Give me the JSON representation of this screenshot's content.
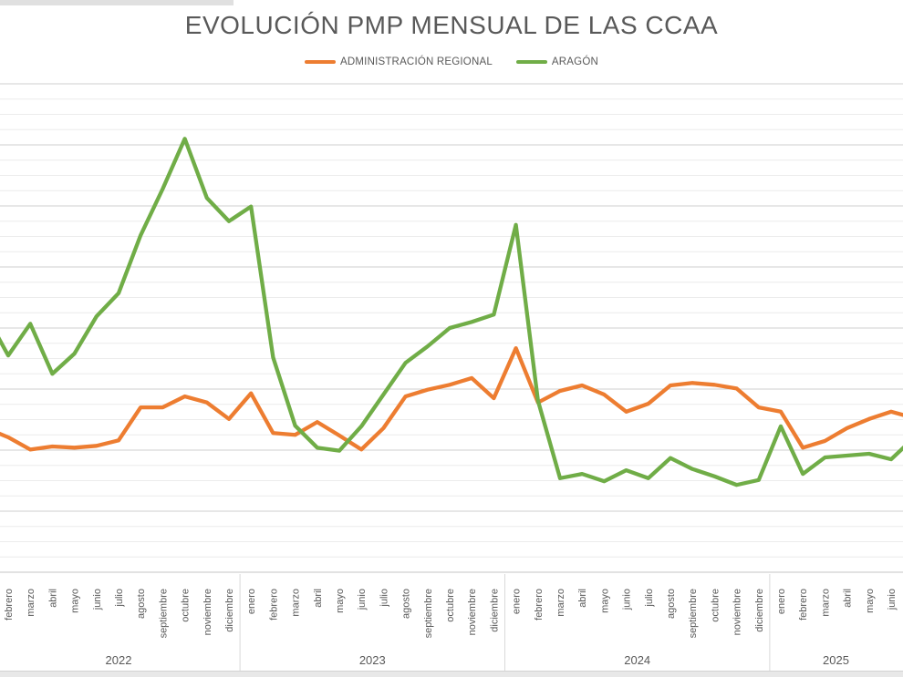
{
  "title": "EVOLUCIÓN PMP MENSUAL DE LAS CCAA",
  "legend": {
    "items": [
      {
        "label": "ADMINISTRACIÓN REGIONAL",
        "color": "#ED7D31"
      },
      {
        "label": "ARAGÓN",
        "color": "#70AD47"
      }
    ]
  },
  "chart_data": {
    "type": "line",
    "title": "EVOLUCIÓN PMP MENSUAL DE LAS CCAA",
    "legend_position": "top",
    "grid": true,
    "note": "Y-axis tick labels are cropped out of the visible image; values are estimated (PMP days). Leftmost (enero 2022) and rightmost (julio 2025) points are clipped at the image edges.",
    "x_groups": [
      {
        "year": "2022",
        "months": [
          "febrero",
          "marzo",
          "abril",
          "mayo",
          "junio",
          "julio",
          "agosto",
          "septiembre",
          "octubre",
          "noviembre",
          "diciembre"
        ]
      },
      {
        "year": "2023",
        "months": [
          "enero",
          "febrero",
          "marzo",
          "abril",
          "mayo",
          "junio",
          "julio",
          "agosto",
          "septiembre",
          "octubre",
          "noviembre",
          "diciembre"
        ]
      },
      {
        "year": "2024",
        "months": [
          "enero",
          "febrero",
          "marzo",
          "abril",
          "mayo",
          "junio",
          "julio",
          "agosto",
          "septiembre",
          "octubre",
          "noviembre",
          "diciembre"
        ]
      },
      {
        "year": "2025",
        "months": [
          "enero",
          "febrero",
          "marzo",
          "abril",
          "mayo",
          "junio"
        ]
      }
    ],
    "y_axis": {
      "labels_visible": false,
      "est_min": 0,
      "est_max": 80,
      "major_grid_step": 10,
      "minor_grid_step": 2.5
    },
    "series": [
      {
        "name": "ADMINISTRACIÓN REGIONAL",
        "color": "#ED7D31",
        "edge_lead_in": 23.6,
        "edge_lead_out": 25.3,
        "values": [
          22.1,
          20.1,
          20.6,
          20.4,
          20.7,
          21.6,
          27.0,
          27.0,
          28.8,
          27.8,
          25.1,
          29.3,
          22.8,
          22.5,
          24.6,
          22.4,
          20.1,
          23.6,
          28.8,
          29.9,
          30.7,
          31.8,
          28.5,
          36.7,
          27.8,
          29.7,
          30.6,
          29.1,
          26.3,
          27.6,
          30.6,
          31.0,
          30.7,
          30.1,
          27.0,
          26.3,
          20.4,
          21.5,
          23.6,
          25.1,
          26.3
        ]
      },
      {
        "name": "ARAGÓN",
        "color": "#70AD47",
        "edge_lead_in": 42.1,
        "edge_lead_out": 21.9,
        "values": [
          35.5,
          40.7,
          32.5,
          35.8,
          41.9,
          45.7,
          55.2,
          62.8,
          71.0,
          61.3,
          57.5,
          59.9,
          35.2,
          24.0,
          20.4,
          19.9,
          23.9,
          29.1,
          34.3,
          37.0,
          40.0,
          41.0,
          42.2,
          56.9,
          28.1,
          15.4,
          16.1,
          14.9,
          16.7,
          15.4,
          18.7,
          16.9,
          15.7,
          14.3,
          15.1,
          23.9,
          16.1,
          18.8,
          19.1,
          19.4,
          18.5
        ]
      }
    ],
    "colors": {
      "major_grid": "#CFCFCF",
      "minor_grid": "#ECECEC",
      "axis_line": "#C6C6C6",
      "separator": "#D9D9D9",
      "label_text": "#595959"
    }
  }
}
